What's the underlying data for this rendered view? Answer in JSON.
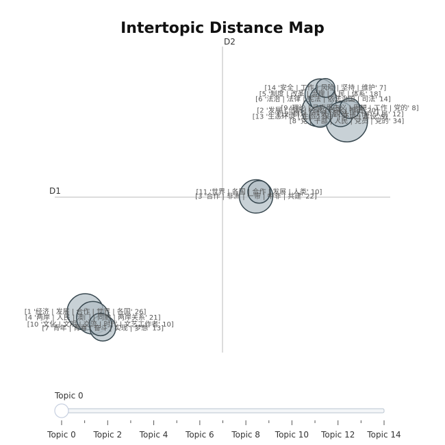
{
  "chart_data": {
    "type": "scatter",
    "title": "Intertopic Distance Map",
    "axis_labels": {
      "d1": "D1",
      "d2": "D2"
    },
    "grid": false,
    "colors": {
      "bubble_fill": "#b0bec5",
      "bubble_stroke": "#37474f",
      "axis": "#d0d0d0",
      "slider_track": "#b8c4d0"
    },
    "points": [
      {
        "topic": 1,
        "label": "[1 '经济 | 发展 | 合作 | 世界 | 各国' 26]",
        "x": -1.8,
        "y": -1.55,
        "size": 26
      },
      {
        "topic": 4,
        "label": "[4 '两岸 | 人民 | 澳门 | 同胞 | 两岸关系' 21]",
        "x": -1.7,
        "y": -1.63,
        "size": 21
      },
      {
        "topic": 10,
        "label": "[10 '文化 | 文明 | 交流 | 时代 | 文艺工作者' 10]",
        "x": -1.6,
        "y": -1.72,
        "size": 10
      },
      {
        "topic": 7,
        "label": "[7 '青年 | 青春 | 奋斗 | 实现 | 梦想' 13]",
        "x": -1.57,
        "y": -1.77,
        "size": 13
      },
      {
        "topic": 11,
        "label": "[11 '世界 | 各国 | 合作 | 发展 | 人类' 10]",
        "x": 0.48,
        "y": 0.07,
        "size": 10
      },
      {
        "topic": 3,
        "label": "[3 '合作 | 非洲 | 一带 | 中非 | 共建' 22]",
        "x": 0.44,
        "y": 0.01,
        "size": 22
      },
      {
        "topic": 14,
        "label": "[14 '安全 | 工作 | 风险 | 坚持 | 维护' 7]",
        "x": 1.35,
        "y": 1.45,
        "size": 7
      },
      {
        "topic": 5,
        "label": "[5 '制度 | 改革 | 治理 | 人民 | 体系' 18]",
        "x": 1.28,
        "y": 1.37,
        "size": 18
      },
      {
        "topic": 6,
        "label": "[6 '法治 | 法律 | 宪法 | 依法治国 | 司法' 14]",
        "x": 1.32,
        "y": 1.3,
        "size": 14
      },
      {
        "topic": 2,
        "label": "[2 '发展 | 创新 | 经济 | 改革 | 推进' 20]",
        "x": 1.25,
        "y": 1.15,
        "size": 20
      },
      {
        "topic": 9,
        "label": "[9 '理论 | 马克思主义 | 思想 | 工作 | 党的' 8]",
        "x": 1.67,
        "y": 1.18,
        "size": 8
      },
      {
        "topic": 12,
        "label": "[12 '群众 | 扶贫 | 脱贫 | 工作 | 人民' 12]",
        "x": 1.55,
        "y": 1.1,
        "size": 12
      },
      {
        "topic": 13,
        "label": "[13 '生态环境 | 生态 | 保护 | 环境 | 建设' 9]",
        "x": 1.28,
        "y": 1.07,
        "size": 9
      },
      {
        "topic": 8,
        "label": "[8 '党 | 干部 | 人民 | 党员 | 党的' 34]",
        "x": 1.63,
        "y": 1.01,
        "size": 34
      }
    ],
    "slider": {
      "current_label": "Topic 0",
      "ticks": [
        "Topic 0",
        "Topic 2",
        "Topic 4",
        "Topic 6",
        "Topic 8",
        "Topic 10",
        "Topic 12",
        "Topic 14"
      ],
      "min": 0,
      "max": 14,
      "value": 0
    }
  }
}
